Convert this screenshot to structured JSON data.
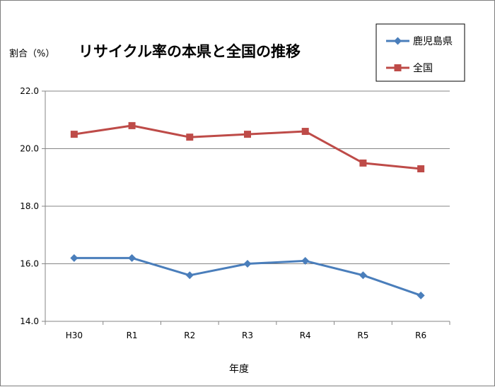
{
  "chart_data": {
    "type": "line",
    "title": "リサイクル率の本県と全国の推移",
    "ylabel": "割合（%）",
    "xlabel": "年度",
    "categories": [
      "H30",
      "R1",
      "R2",
      "R3",
      "R4",
      "R5",
      "R6"
    ],
    "ylim": [
      14.0,
      22.0
    ],
    "yticks": [
      "14.0",
      "16.0",
      "18.0",
      "20.0",
      "22.0"
    ],
    "grid": true,
    "legend_position": "top-right",
    "series": [
      {
        "name": "鹿児島県",
        "color": "#4a7ebb",
        "marker": "diamond",
        "values": [
          16.2,
          16.2,
          15.6,
          16.0,
          16.1,
          15.6,
          14.9
        ]
      },
      {
        "name": "全国",
        "color": "#be4b48",
        "marker": "square",
        "values": [
          20.5,
          20.8,
          20.4,
          20.5,
          20.6,
          19.5,
          19.3
        ]
      }
    ]
  }
}
